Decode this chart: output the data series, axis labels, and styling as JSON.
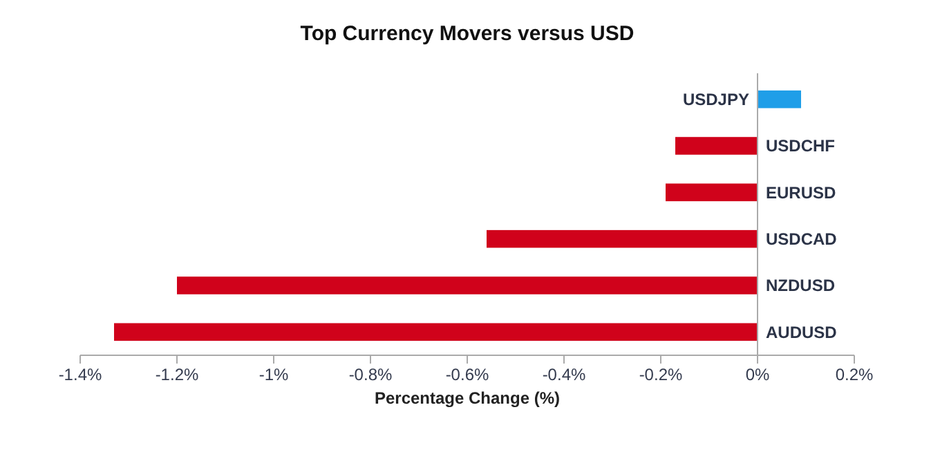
{
  "chart_data": {
    "type": "bar",
    "orientation": "horizontal",
    "title": "Top Currency Movers versus USD",
    "xlabel": "Percentage Change (%)",
    "categories": [
      "USDJPY",
      "USDCHF",
      "EURUSD",
      "USDCAD",
      "NZDUSD",
      "AUDUSD"
    ],
    "values": [
      0.09,
      -0.17,
      -0.19,
      -0.56,
      -1.2,
      -1.33
    ],
    "colors": [
      "#1f9ee8",
      "#d0021b",
      "#d0021b",
      "#d0021b",
      "#d0021b",
      "#d0021b"
    ],
    "xlim": [
      -1.4,
      0.2
    ],
    "xticks": [
      {
        "value": -1.4,
        "label": "-1.4%"
      },
      {
        "value": -1.2,
        "label": "-1.2%"
      },
      {
        "value": -1,
        "label": "-1%"
      },
      {
        "value": -0.8,
        "label": "-0.8%"
      },
      {
        "value": -0.6,
        "label": "-0.6%"
      },
      {
        "value": -0.4,
        "label": "-0.4%"
      },
      {
        "value": -0.2,
        "label": "-0.2%"
      },
      {
        "value": 0,
        "label": "0%"
      },
      {
        "value": 0.2,
        "label": "0.2%"
      }
    ],
    "grid": false
  }
}
